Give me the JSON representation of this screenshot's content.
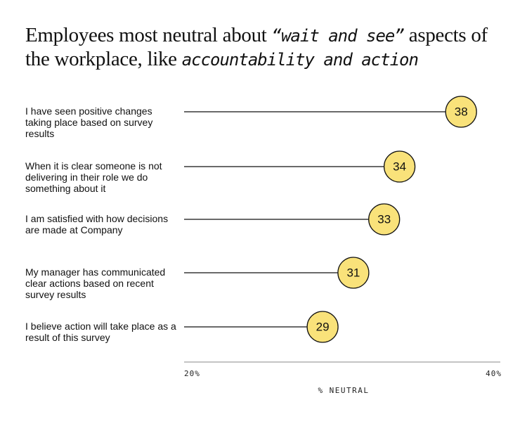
{
  "chart_data": {
    "type": "lollipop",
    "title": [
      "Employees most neutral about ",
      "“wait and see”",
      " aspects of the workplace, like ",
      "accountability and action"
    ],
    "categories": [
      "I have seen positive changes taking place based on survey results",
      "When it is clear someone is not delivering in their role we do something about it",
      "I am satisfied with how decisions are made at Company",
      "My manager has communicated clear actions based on recent survey results",
      "I believe action will take place as a result of this survey"
    ],
    "values": [
      38,
      34,
      33,
      31,
      29
    ],
    "color": "#f9e27a",
    "xlim": [
      20,
      40
    ],
    "xticks": [
      {
        "value": 20,
        "label": "20%"
      },
      {
        "value": 40,
        "label": "40%"
      }
    ],
    "xlabel": "% NEUTRAL"
  }
}
